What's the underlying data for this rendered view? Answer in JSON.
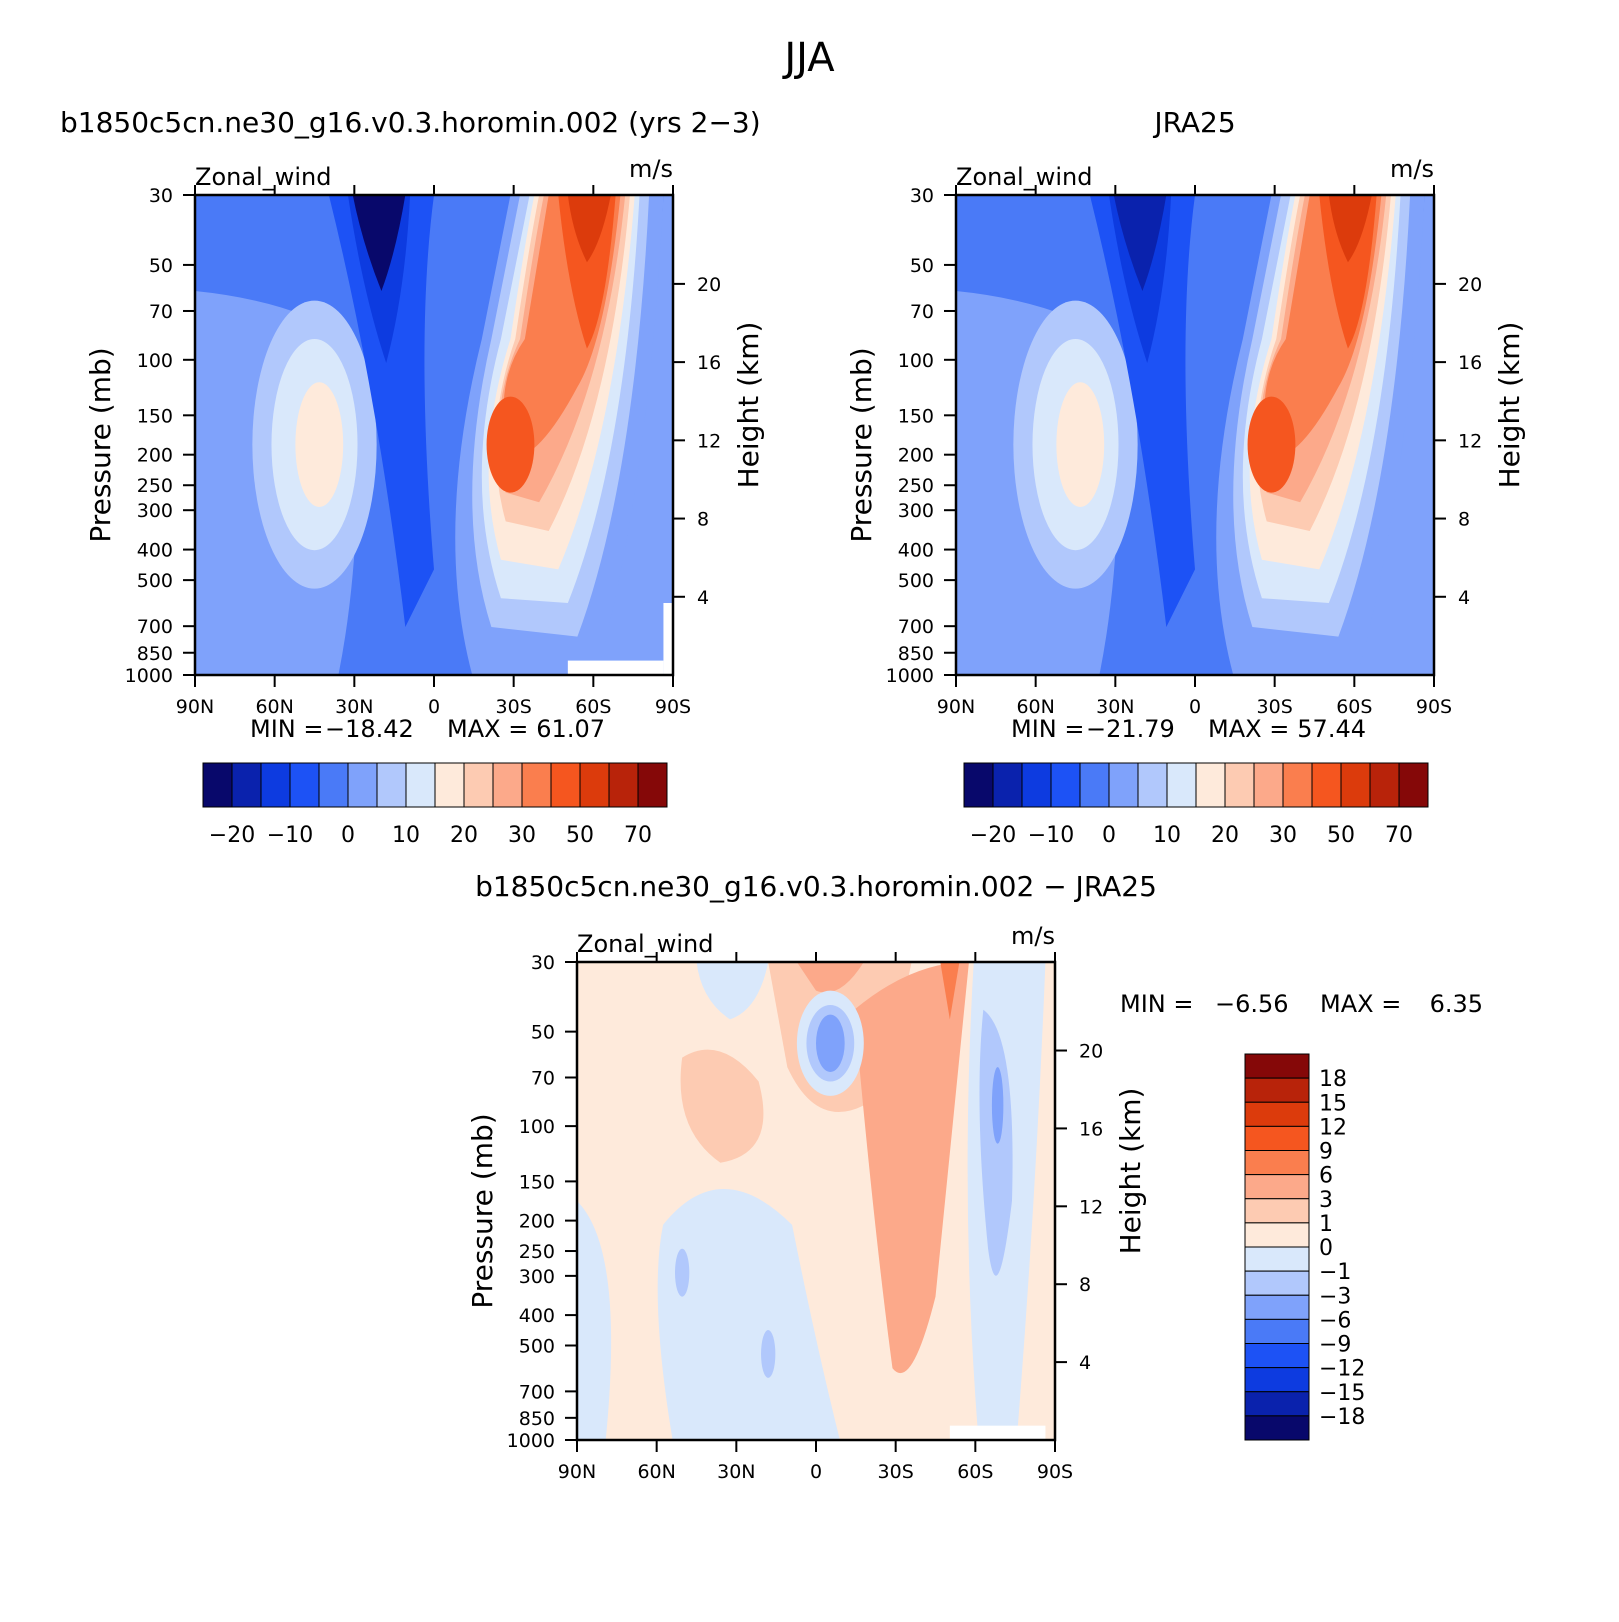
{
  "page_title": "JJA",
  "chart_data": [
    {
      "type": "heatmap",
      "panel": "model",
      "title": "b1850c5cn.ne30_g16.v0.3.horomin.002 (yrs 2−3)",
      "left_label": "Zonal_wind",
      "right_label": "m/s",
      "ylabel": "Pressure (mb)",
      "ylabel_right": "Height (km)",
      "x_ticks": [
        "90N",
        "60N",
        "30N",
        "0",
        "30S",
        "60S",
        "90S"
      ],
      "y_ticks": [
        "30",
        "50",
        "70",
        "100",
        "150",
        "200",
        "250",
        "300",
        "400",
        "500",
        "700",
        "850",
        "1000"
      ],
      "y_right_ticks": [
        "20",
        "16",
        "12",
        "8",
        "4"
      ],
      "min_label": "MIN =",
      "min_value": "−18.42",
      "max_label": "MAX =",
      "max_value": "61.07",
      "colorbar_ticks": [
        "−20",
        "−10",
        "0",
        "10",
        "20",
        "30",
        "50",
        "70"
      ]
    },
    {
      "type": "heatmap",
      "panel": "obs",
      "title": "JRA25",
      "left_label": "Zonal_wind",
      "right_label": "m/s",
      "ylabel": "Pressure (mb)",
      "ylabel_right": "Height (km)",
      "x_ticks": [
        "90N",
        "60N",
        "30N",
        "0",
        "30S",
        "60S",
        "90S"
      ],
      "y_ticks": [
        "30",
        "50",
        "70",
        "100",
        "150",
        "200",
        "250",
        "300",
        "400",
        "500",
        "700",
        "850",
        "1000"
      ],
      "y_right_ticks": [
        "20",
        "16",
        "12",
        "8",
        "4"
      ],
      "min_label": "MIN =",
      "min_value": "−21.79",
      "max_label": "MAX =",
      "max_value": "57.44",
      "colorbar_ticks": [
        "−20",
        "−10",
        "0",
        "10",
        "20",
        "30",
        "50",
        "70"
      ]
    },
    {
      "type": "heatmap",
      "panel": "diff",
      "title": "b1850c5cn.ne30_g16.v0.3.horomin.002 − JRA25",
      "left_label": "Zonal_wind",
      "right_label": "m/s",
      "ylabel": "Pressure (mb)",
      "ylabel_right": "Height (km)",
      "x_ticks": [
        "90N",
        "60N",
        "30N",
        "0",
        "30S",
        "60S",
        "90S"
      ],
      "y_ticks": [
        "30",
        "50",
        "70",
        "100",
        "150",
        "200",
        "250",
        "300",
        "400",
        "500",
        "700",
        "850",
        "1000"
      ],
      "y_right_ticks": [
        "20",
        "16",
        "12",
        "8",
        "4"
      ],
      "min_label": "MIN =",
      "min_value": "−6.56",
      "max_label": "MAX =",
      "max_value": "6.35",
      "colorbar_ticks": [
        "18",
        "15",
        "12",
        "9",
        "6",
        "3",
        "1",
        "0",
        "−1",
        "−3",
        "−6",
        "−9",
        "−12",
        "−15",
        "−18"
      ]
    }
  ],
  "colors": {
    "palette": [
      "#08086b",
      "#0a22ad",
      "#0d3be0",
      "#1d52f5",
      "#4a7af7",
      "#7fa2fb",
      "#b1c8fc",
      "#d9e8fb",
      "#feeadb",
      "#fdcbb2",
      "#fca98a",
      "#fa7e4e",
      "#f5561f",
      "#dc3b0c",
      "#b8230a",
      "#850808"
    ]
  }
}
